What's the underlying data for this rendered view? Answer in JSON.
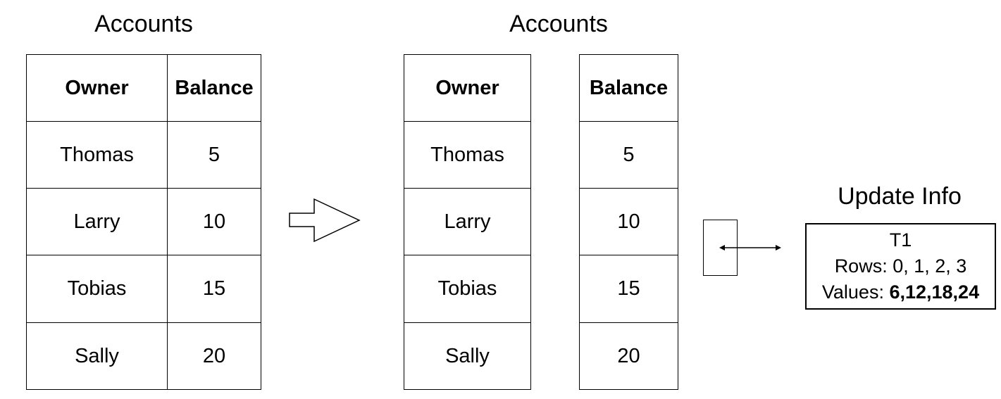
{
  "left_table": {
    "title": "Accounts",
    "headers": [
      "Owner",
      "Balance"
    ],
    "rows": [
      [
        "Thomas",
        "5"
      ],
      [
        "Larry",
        "10"
      ],
      [
        "Tobias",
        "15"
      ],
      [
        "Sally",
        "20"
      ]
    ]
  },
  "right_table": {
    "title": "Accounts",
    "headers": [
      "Owner",
      "Balance"
    ],
    "rows": [
      [
        "Thomas",
        "5"
      ],
      [
        "Larry",
        "10"
      ],
      [
        "Tobias",
        "15"
      ],
      [
        "Sally",
        "20"
      ]
    ]
  },
  "transform_arrow_icon": "block-arrow-right",
  "link_arrow_icon": "double-headed-arrow",
  "update_info": {
    "title": "Update Info",
    "txn": "T1",
    "rows_label": "Rows:",
    "rows_value": "0, 1, 2, 3",
    "values_label": "Values:",
    "values_value": "6,12,18,24"
  }
}
